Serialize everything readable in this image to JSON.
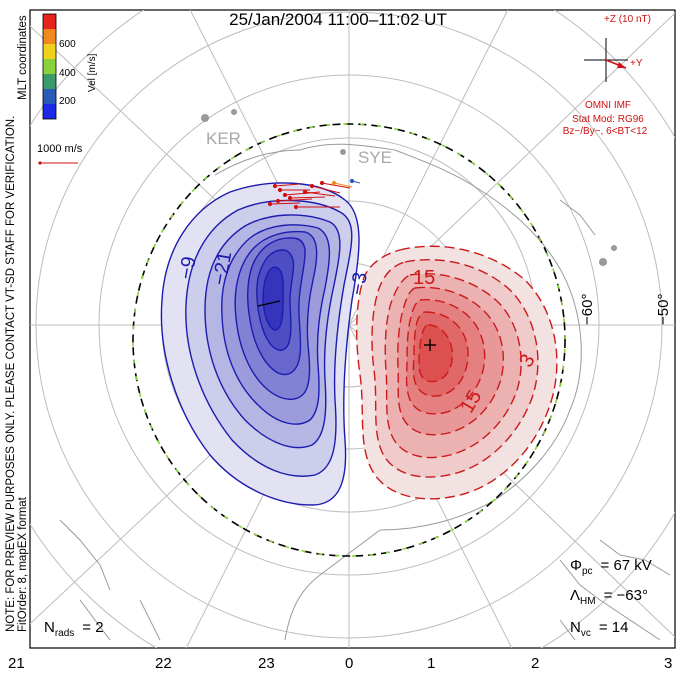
{
  "title": "25/Jan/2004 11:00–11:02 UT",
  "note_line1": "NOTE: FOR PREVIEW PURPOSES ONLY. PLEASE CONTACT VT-SD STAFF FOR VERIFICATION.",
  "note_line2": "FitOrder: 8, mapEX format",
  "coord_label": "MLT coordinates",
  "colorbar": {
    "label": "Vel [m/s]",
    "ticks": [
      "600",
      "400",
      "200"
    ],
    "colors": [
      "#e8221c",
      "#f08a1c",
      "#f0d21c",
      "#8ad23c",
      "#3a9a6a",
      "#2a5ab8",
      "#1c2ae8"
    ]
  },
  "vector_scale": "1000 m/s",
  "imf": {
    "z_label": "+Z (10 nT)",
    "y_label": "+Y",
    "source": "OMNI IMF",
    "model": "Stat Mod: RG96",
    "bin": "Bz−/By−, 6<BT<12",
    "color": "#d01010"
  },
  "stations": [
    "KER",
    "SYE"
  ],
  "lat_labels": [
    "−60°",
    "−50°"
  ],
  "mlt_labels": [
    "21",
    "22",
    "23",
    "0",
    "1",
    "2",
    "3"
  ],
  "contours": {
    "negative": [
      "−9",
      "−21",
      "−3"
    ],
    "positive": [
      "15",
      "15",
      "3"
    ]
  },
  "stats": {
    "phi_label": "Φ",
    "phi_sub": "pc",
    "phi_value": "= 67 kV",
    "lambda_label": "Λ",
    "lambda_sub": "HM",
    "lambda_value": "= −63°",
    "nvc_label": "N",
    "nvc_sub": "vc",
    "nvc_value": "= 14",
    "nrads_label": "N",
    "nrads_sub": "rads",
    "nrads_value": "= 2"
  },
  "colors": {
    "negative_cell": "#2020d0",
    "positive_cell": "#d02020",
    "grid": "#bdbdbd",
    "land": "#9a9a9a",
    "hm_boundary_green": "#8ad23c"
  }
}
